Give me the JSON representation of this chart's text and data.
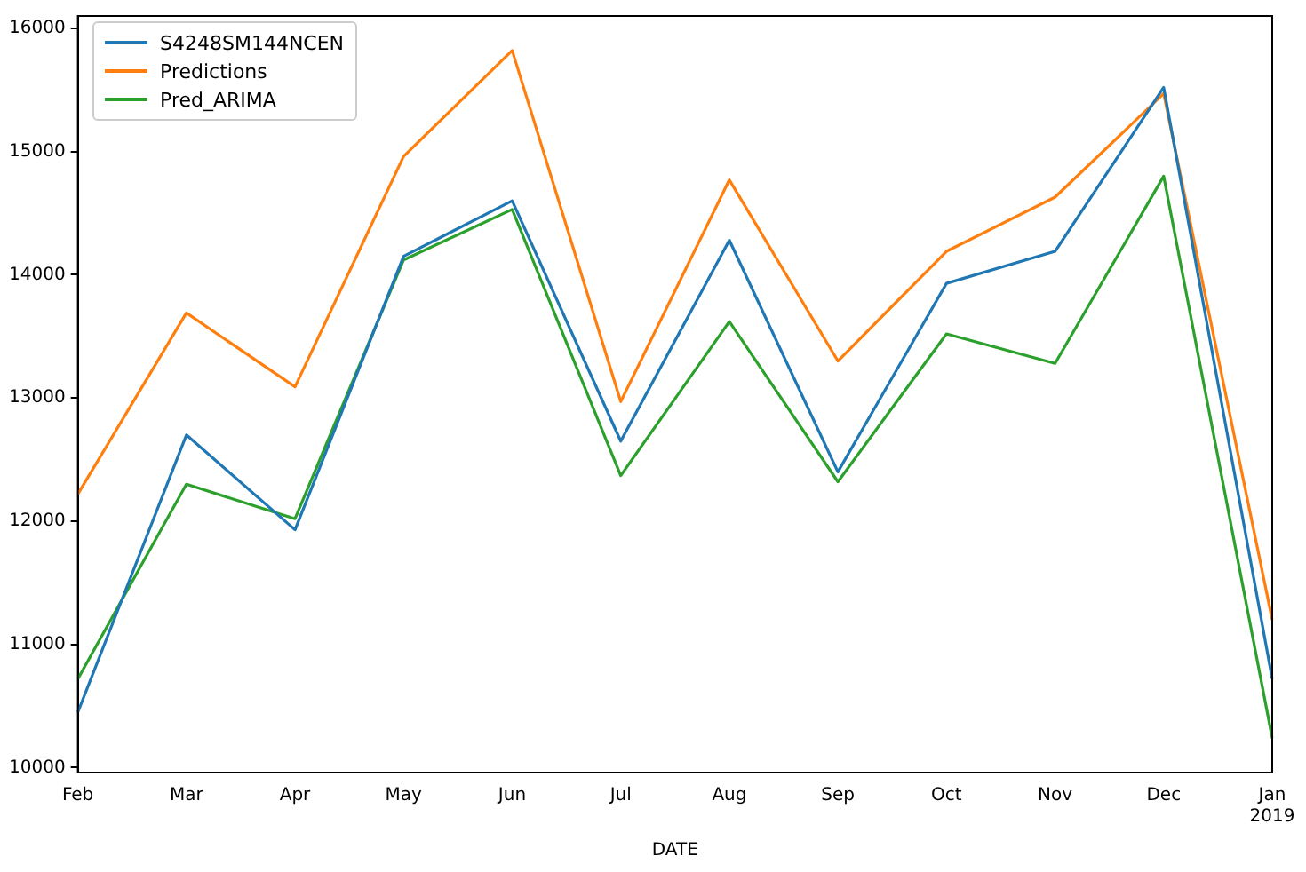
{
  "chart_data": {
    "type": "line",
    "xlabel": "DATE",
    "categories": [
      "Feb",
      "Mar",
      "Apr",
      "May",
      "Jun",
      "Jul",
      "Aug",
      "Sep",
      "Oct",
      "Nov",
      "Dec",
      "Jan\n2019"
    ],
    "series": [
      {
        "name": "S4248SM144NCEN",
        "color": "#1f77b4",
        "values": [
          10450,
          12700,
          11930,
          14150,
          14600,
          12650,
          14280,
          12400,
          13930,
          14190,
          15520,
          10720
        ]
      },
      {
        "name": "Predictions",
        "color": "#ff7f0e",
        "values": [
          12220,
          13690,
          13090,
          14960,
          15820,
          12970,
          14770,
          13300,
          14190,
          14630,
          15470,
          11200
        ]
      },
      {
        "name": "Pred_ARIMA",
        "color": "#2ca02c",
        "values": [
          10720,
          12300,
          12020,
          14120,
          14530,
          12370,
          13620,
          12320,
          13520,
          13280,
          14800,
          10240
        ]
      }
    ],
    "ylim": [
      9960,
      16100
    ],
    "yticks": [
      10000,
      11000,
      12000,
      13000,
      14000,
      15000,
      16000
    ],
    "grid": false,
    "legend": "top left",
    "marker": "none",
    "line_style": "solid"
  }
}
